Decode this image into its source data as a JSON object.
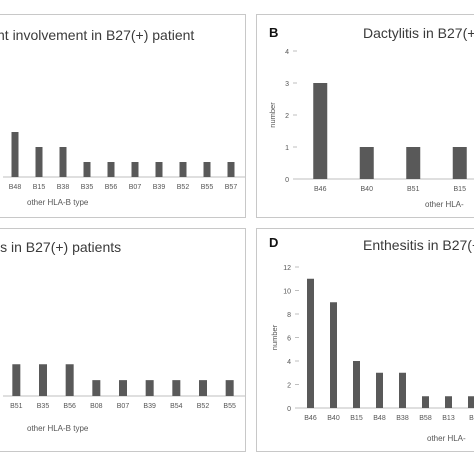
{
  "bar_color": "#595959",
  "axis_color": "#bfbfbf",
  "border_color": "#c8c8c8",
  "chart_data": [
    {
      "panel": "A",
      "letter": "",
      "type": "bar",
      "title": "nt involvement in B27(+) patient",
      "xlabel": "other HLA-B type",
      "ylabel": "",
      "categories": [
        "B48",
        "B15",
        "B38",
        "B35",
        "B56",
        "B07",
        "B39",
        "B52",
        "B55",
        "B57"
      ],
      "values": [
        3,
        2,
        2,
        1,
        1,
        1,
        1,
        1,
        1,
        1
      ],
      "ylim": [
        0,
        8
      ],
      "yticks": []
    },
    {
      "panel": "B",
      "letter": "B",
      "type": "bar",
      "title": "Dactylitis in B27(+",
      "xlabel": "other HLA-",
      "ylabel": "number",
      "categories": [
        "B46",
        "B40",
        "B51",
        "B15"
      ],
      "values": [
        3,
        1,
        1,
        1
      ],
      "ylim": [
        0,
        4
      ],
      "yticks": [
        0,
        1,
        2,
        3,
        4
      ]
    },
    {
      "panel": "C",
      "letter": "",
      "type": "bar",
      "title": "is in B27(+) patients",
      "xlabel": "other HLA-B type",
      "ylabel": "",
      "categories": [
        "B51",
        "B35",
        "B56",
        "B08",
        "B07",
        "B39",
        "B54",
        "B52",
        "B55"
      ],
      "values": [
        2,
        2,
        2,
        1,
        1,
        1,
        1,
        1,
        1
      ],
      "ylim": [
        0,
        8
      ],
      "yticks": []
    },
    {
      "panel": "D",
      "letter": "D",
      "type": "bar",
      "title": "Enthesitis in B27(+",
      "xlabel": "other HLA-",
      "ylabel": "number",
      "categories": [
        "B46",
        "B40",
        "B15",
        "B48",
        "B38",
        "B58",
        "B13",
        "B"
      ],
      "values": [
        11,
        9,
        4,
        3,
        3,
        1,
        1,
        1
      ],
      "ylim": [
        0,
        12
      ],
      "yticks": [
        0,
        2,
        4,
        6,
        8,
        10,
        12
      ]
    }
  ]
}
